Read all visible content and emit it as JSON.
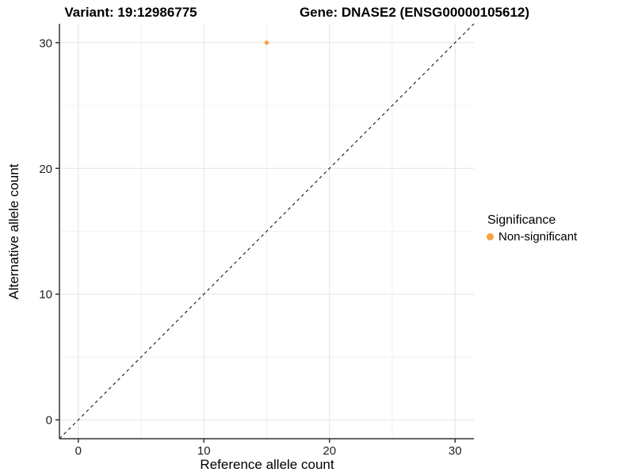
{
  "figure": {
    "title_left": "Variant: 19:12986775",
    "title_right": "Gene: DNASE2 (ENSG00000105612)"
  },
  "legend": {
    "title": "Significance",
    "items": [
      {
        "label": "Non-significant",
        "color": "#F9A23B"
      }
    ]
  },
  "chart_data": {
    "type": "scatter",
    "title": "Variant: 19:12986775   Gene: DNASE2 (ENSG00000105612)",
    "xlabel": "Reference allele count",
    "ylabel": "Alternative allele count",
    "xlim": [
      -1.5,
      31.5
    ],
    "ylim": [
      -1.5,
      31.5
    ],
    "x_ticks": [
      0,
      10,
      20,
      30
    ],
    "y_ticks": [
      0,
      10,
      20,
      30
    ],
    "x_minor_ticks": [
      5,
      15,
      25
    ],
    "y_minor_ticks": [
      5,
      15,
      25
    ],
    "grid": true,
    "legend_position": "right",
    "series": [
      {
        "name": "Non-significant",
        "color": "#F9A23B",
        "points": [
          {
            "x": 15,
            "y": 30
          }
        ]
      }
    ],
    "reference_line": {
      "type": "identity",
      "slope": 1,
      "intercept": 0,
      "style": "dashed",
      "color": "#000000"
    },
    "style": {
      "axis_line_color": "#333333",
      "tick_color": "#333333",
      "tick_label_color": "#222222",
      "major_grid_color": "#e3e3e3",
      "minor_grid_color": "#f1f1f1",
      "background": "#ffffff"
    }
  }
}
